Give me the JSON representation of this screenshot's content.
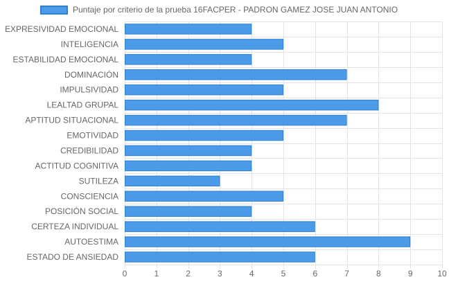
{
  "chart_data": {
    "type": "bar",
    "orientation": "horizontal",
    "series": [
      {
        "name": "Puntaje por criterio de la prueba 16FACPER - PADRON GAMEZ JOSE JUAN ANTONIO",
        "values": [
          4,
          5,
          4,
          7,
          5,
          8,
          7,
          5,
          4,
          4,
          3,
          5,
          4,
          6,
          9,
          6
        ]
      }
    ],
    "categories": [
      "EXPRESIVIDAD EMOCIONAL",
      "INTELIGENCIA",
      "ESTABILIDAD EMOCIONAL",
      "DOMINACIÓN",
      "IMPULSIVIDAD",
      "LEALTAD GRUPAL",
      "APTITUD SITUACIONAL",
      "EMOTIVIDAD",
      "CREDIBILIDAD",
      "ACTITUD COGNITIVA",
      "SUTILEZA",
      "CONSCIENCIA",
      "POSICIÓN SOCIAL",
      "CERTEZA INDIVIDUAL",
      "AUTOESTIMA",
      "ESTADO DE ANSIEDAD"
    ],
    "xlim": [
      0,
      10
    ],
    "xticks": [
      "0",
      "1",
      "2",
      "3",
      "4",
      "5",
      "6",
      "7",
      "8",
      "9",
      "10"
    ],
    "grid": true,
    "legend_position": "top",
    "colors": {
      "bar_fill": "#4c9be8",
      "bar_border": "#2f7fd3",
      "grid": "#e3e3e3"
    }
  }
}
